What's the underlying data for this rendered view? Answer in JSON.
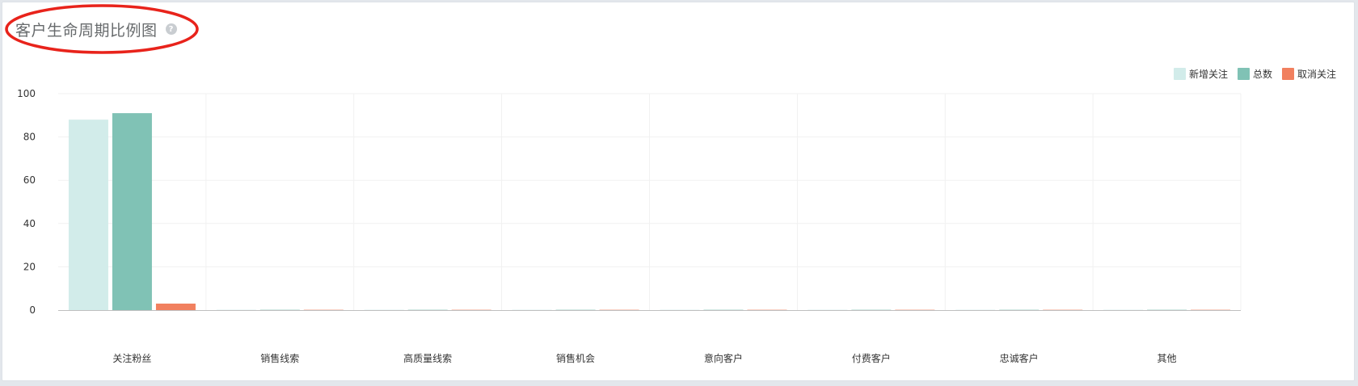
{
  "card": {
    "title": "客户生命周期比例图",
    "help_icon": "question-circle-icon"
  },
  "colors": {
    "grid": "#f1f1f1",
    "axis": "#bfbfbf",
    "annotation": "#e8231b"
  },
  "chart_data": {
    "type": "bar",
    "categories": [
      "关注粉丝",
      "销售线索",
      "高质量线索",
      "销售机会",
      "意向客户",
      "付费客户",
      "忠诚客户",
      "其他"
    ],
    "series": [
      {
        "name": "新增关注",
        "color": "#d2ecea",
        "values": [
          88,
          0,
          0,
          0,
          0,
          0,
          0,
          0
        ]
      },
      {
        "name": "总数",
        "color": "#80c2b5",
        "values": [
          91,
          0,
          0,
          0,
          0,
          0,
          0,
          0
        ]
      },
      {
        "name": "取消关注",
        "color": "#f1805f",
        "values": [
          3,
          0,
          0,
          0,
          0,
          0,
          0,
          0
        ]
      }
    ],
    "ylim": [
      0,
      100
    ],
    "yticks": [
      0,
      20,
      40,
      60,
      80,
      100
    ],
    "title": "",
    "xlabel": "",
    "ylabel": "",
    "grid": true,
    "legend_position": "top-right"
  }
}
